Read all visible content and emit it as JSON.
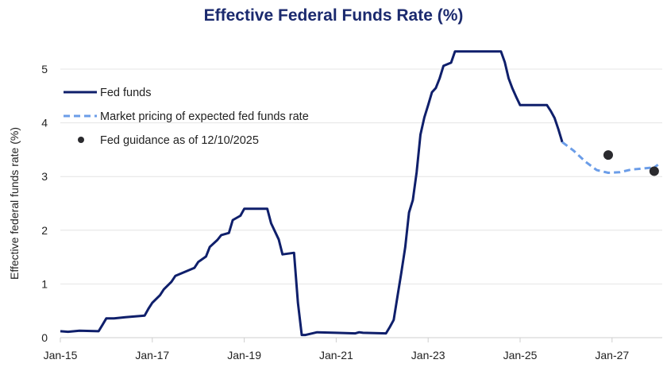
{
  "chart_data": {
    "type": "line",
    "title": "Effective Federal Funds Rate (%)",
    "xlabel": "",
    "ylabel": "Effective federal funds rate (%)",
    "x_ticks": [
      "Jan-15",
      "Jan-17",
      "Jan-19",
      "Jan-21",
      "Jan-23",
      "Jan-25",
      "Jan-27"
    ],
    "y_ticks": [
      0,
      1,
      2,
      3,
      4,
      5
    ],
    "xlim": [
      "2015-01",
      "2028-02"
    ],
    "ylim": [
      0,
      5.5
    ],
    "grid": "horizontal",
    "legend_position": "top-left",
    "series": [
      {
        "name": "Fed funds",
        "style": "solid",
        "color": "#0f1f6b",
        "points": [
          [
            "2015-01",
            0.12
          ],
          [
            "2015-03",
            0.11
          ],
          [
            "2015-06",
            0.13
          ],
          [
            "2015-11",
            0.12
          ],
          [
            "2015-12",
            0.24
          ],
          [
            "2016-01",
            0.36
          ],
          [
            "2016-03",
            0.36
          ],
          [
            "2016-06",
            0.38
          ],
          [
            "2016-11",
            0.41
          ],
          [
            "2016-12",
            0.54
          ],
          [
            "2017-01",
            0.65
          ],
          [
            "2017-03",
            0.79
          ],
          [
            "2017-04",
            0.9
          ],
          [
            "2017-06",
            1.04
          ],
          [
            "2017-07",
            1.15
          ],
          [
            "2017-12",
            1.3
          ],
          [
            "2018-01",
            1.41
          ],
          [
            "2018-03",
            1.51
          ],
          [
            "2018-04",
            1.69
          ],
          [
            "2018-06",
            1.82
          ],
          [
            "2018-07",
            1.91
          ],
          [
            "2018-09",
            1.95
          ],
          [
            "2018-10",
            2.19
          ],
          [
            "2018-12",
            2.27
          ],
          [
            "2019-01",
            2.4
          ],
          [
            "2019-07",
            2.4
          ],
          [
            "2019-08",
            2.13
          ],
          [
            "2019-10",
            1.83
          ],
          [
            "2019-11",
            1.55
          ],
          [
            "2020-02",
            1.58
          ],
          [
            "2020-03",
            0.65
          ],
          [
            "2020-04",
            0.05
          ],
          [
            "2020-05",
            0.05
          ],
          [
            "2020-08",
            0.1
          ],
          [
            "2021-01",
            0.09
          ],
          [
            "2021-06",
            0.08
          ],
          [
            "2021-07",
            0.1
          ],
          [
            "2021-08",
            0.09
          ],
          [
            "2022-02",
            0.08
          ],
          [
            "2022-03",
            0.2
          ],
          [
            "2022-04",
            0.33
          ],
          [
            "2022-05",
            0.77
          ],
          [
            "2022-06",
            1.21
          ],
          [
            "2022-07",
            1.68
          ],
          [
            "2022-08",
            2.33
          ],
          [
            "2022-09",
            2.56
          ],
          [
            "2022-10",
            3.08
          ],
          [
            "2022-11",
            3.78
          ],
          [
            "2022-12",
            4.1
          ],
          [
            "2023-01",
            4.33
          ],
          [
            "2023-02",
            4.57
          ],
          [
            "2023-03",
            4.65
          ],
          [
            "2023-04",
            4.83
          ],
          [
            "2023-05",
            5.06
          ],
          [
            "2023-07",
            5.12
          ],
          [
            "2023-08",
            5.33
          ],
          [
            "2024-08",
            5.33
          ],
          [
            "2024-09",
            5.13
          ],
          [
            "2024-10",
            4.83
          ],
          [
            "2024-11",
            4.64
          ],
          [
            "2024-12",
            4.48
          ],
          [
            "2025-01",
            4.33
          ],
          [
            "2025-08",
            4.33
          ],
          [
            "2025-09",
            4.22
          ],
          [
            "2025-10",
            4.09
          ],
          [
            "2025-11",
            3.88
          ],
          [
            "2025-12",
            3.64
          ]
        ]
      },
      {
        "name": "Market pricing of expected fed funds rate",
        "style": "dashed",
        "color": "#6b9de8",
        "points": [
          [
            "2025-12",
            3.64
          ],
          [
            "2026-03",
            3.48
          ],
          [
            "2026-06",
            3.28
          ],
          [
            "2026-09",
            3.12
          ],
          [
            "2026-12",
            3.07
          ],
          [
            "2027-03",
            3.08
          ],
          [
            "2027-06",
            3.13
          ],
          [
            "2027-09",
            3.15
          ],
          [
            "2027-12",
            3.17
          ],
          [
            "2028-01",
            3.22
          ]
        ]
      },
      {
        "name": "Fed guidance as of 12/10/2025",
        "style": "dots",
        "color": "#2a2a2e",
        "points": [
          [
            "2026-12",
            3.4
          ],
          [
            "2027-12",
            3.1
          ]
        ]
      }
    ]
  }
}
